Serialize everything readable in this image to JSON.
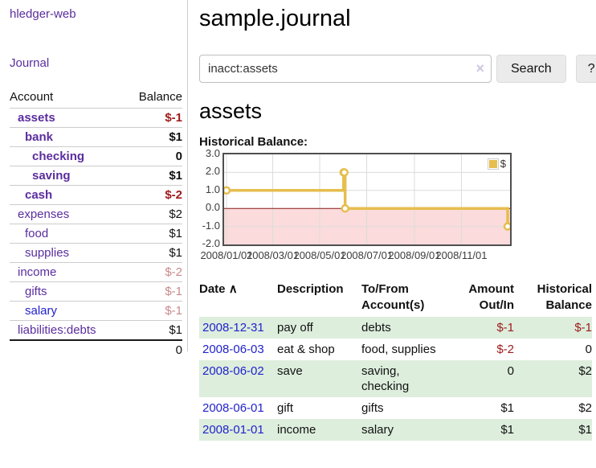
{
  "app": {
    "brand": "hledger-web",
    "nav_journal": "Journal"
  },
  "sidebar": {
    "account_col": "Account",
    "balance_col": "Balance",
    "accounts": [
      {
        "name": "assets",
        "indent": 1,
        "bold": true,
        "link_style": "purple",
        "balance": "$-1",
        "balance_style": "neg-strong"
      },
      {
        "name": "bank",
        "indent": 2,
        "bold": true,
        "link_style": "purple",
        "balance": "$1",
        "balance_style": "pos-strong"
      },
      {
        "name": "checking",
        "indent": 3,
        "bold": true,
        "link_style": "purple",
        "balance": "0",
        "balance_style": "pos-strong"
      },
      {
        "name": "saving",
        "indent": 3,
        "bold": true,
        "link_style": "purple",
        "balance": "$1",
        "balance_style": "pos-strong"
      },
      {
        "name": "cash",
        "indent": 2,
        "bold": true,
        "link_style": "purple",
        "balance": "$-2",
        "balance_style": "neg-strong"
      },
      {
        "name": "expenses",
        "indent": 1,
        "bold": false,
        "link_style": "purple",
        "balance": "$2",
        "balance_style": "pos"
      },
      {
        "name": "food",
        "indent": 2,
        "bold": false,
        "link_style": "purple",
        "balance": "$1",
        "balance_style": "pos"
      },
      {
        "name": "supplies",
        "indent": 2,
        "bold": false,
        "link_style": "purple",
        "balance": "$1",
        "balance_style": "pos"
      },
      {
        "name": "income",
        "indent": 1,
        "bold": false,
        "link_style": "purple",
        "balance": "$-2",
        "balance_style": "neg-muted"
      },
      {
        "name": "gifts",
        "indent": 2,
        "bold": false,
        "link_style": "purple",
        "balance": "$-1",
        "balance_style": "neg-muted"
      },
      {
        "name": "salary",
        "indent": 2,
        "bold": false,
        "link_style": "blue",
        "balance": "$-1",
        "balance_style": "neg-muted"
      },
      {
        "name": "liabilities:debts",
        "indent": 1,
        "bold": false,
        "link_style": "purple",
        "balance": "$1",
        "balance_style": "pos"
      }
    ],
    "total": "0"
  },
  "header": {
    "title": "sample.journal"
  },
  "search": {
    "value": "inacct:assets",
    "clear_icon": "×",
    "button_label": "Search",
    "help_label": "?"
  },
  "account_page": {
    "title": "assets",
    "chart_label": "Historical Balance:"
  },
  "chart_data": {
    "type": "line",
    "step": true,
    "title": "Historical Balance",
    "legend": "$",
    "legend_position": "top-right",
    "series": [
      {
        "name": "$",
        "color": "#e6be4e",
        "points": [
          [
            "2008-01-01",
            1
          ],
          [
            "2008-06-01",
            2
          ],
          [
            "2008-06-02",
            2
          ],
          [
            "2008-06-03",
            0
          ],
          [
            "2008-12-31",
            -1
          ]
        ]
      }
    ],
    "ylim": [
      -2,
      3
    ],
    "yticks": [
      "3.0",
      "2.0",
      "1.0",
      "0.0",
      "-1.0",
      "-2.0"
    ],
    "xticks": [
      "2008/01/01",
      "2008/03/01",
      "2008/05/01",
      "2008/07/01",
      "2008/09/01",
      "2008/11/01"
    ],
    "grid": true,
    "negative_fill": "#fbdbdb",
    "zero_line_color": "#871919",
    "grid_color": "#dcdcdc"
  },
  "register": {
    "columns": [
      {
        "line1": "Date",
        "line2": "",
        "align": "left",
        "sort_icon": "∧"
      },
      {
        "line1": "Description",
        "line2": "",
        "align": "left",
        "sort_icon": ""
      },
      {
        "line1": "To/From",
        "line2": "Account(s)",
        "align": "left",
        "sort_icon": ""
      },
      {
        "line1": "Amount",
        "line2": "Out/In",
        "align": "right",
        "sort_icon": ""
      },
      {
        "line1": "Historical",
        "line2": "Balance",
        "align": "right",
        "sort_icon": ""
      }
    ],
    "rows": [
      {
        "date": "2008-12-31",
        "description": "pay off",
        "accounts": "debts",
        "amount": "$-1",
        "amount_style": "neg",
        "balance": "$-1",
        "balance_style": "neg",
        "shaded": true
      },
      {
        "date": "2008-06-03",
        "description": "eat & shop",
        "accounts": "food, supplies",
        "amount": "$-2",
        "amount_style": "neg",
        "balance": "0",
        "balance_style": "pos",
        "shaded": false
      },
      {
        "date": "2008-06-02",
        "description": "save",
        "accounts": "saving, checking",
        "amount": "0",
        "amount_style": "pos",
        "balance": "$2",
        "balance_style": "pos",
        "shaded": true
      },
      {
        "date": "2008-06-01",
        "description": "gift",
        "accounts": "gifts",
        "amount": "$1",
        "amount_style": "pos",
        "balance": "$2",
        "balance_style": "pos",
        "shaded": false
      },
      {
        "date": "2008-01-01",
        "description": "income",
        "accounts": "salary",
        "amount": "$1",
        "amount_style": "pos",
        "balance": "$1",
        "balance_style": "pos",
        "shaded": true
      }
    ]
  }
}
